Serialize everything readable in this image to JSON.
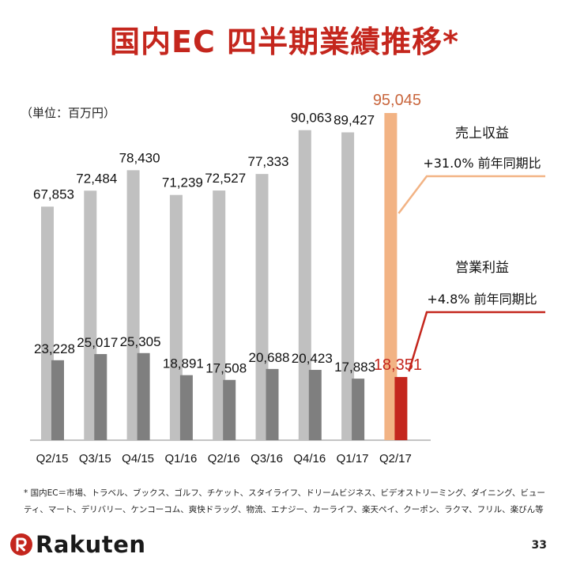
{
  "title": "国内EC 四半期業績推移*",
  "unit_label": "（単位：百万円）",
  "annotations": {
    "revenue": {
      "label": "売上収益",
      "growth": "+31.0% 前年同期比"
    },
    "profit": {
      "label": "営業利益",
      "growth": "+4.8% 前年同期比"
    }
  },
  "footnote": "* 国内EC＝市場、トラベル、ブックス、ゴルフ、チケット、スタイライフ、ドリームビジネス、ビデオストリーミング、ダイニング、ビューティ、マート、デリバリー、ケンコーコム、爽快ドラッグ、物流、エナジー、カーライフ、楽天ペイ、クーポン、ラクマ、フリル、楽びん等",
  "brand": "Rakuten",
  "page_number": "33",
  "colors": {
    "title": "#c4261d",
    "revenue_bar": "#c0c0c0",
    "profit_bar": "#7f7f7f",
    "highlight_revenue_bar": "#f2b384",
    "highlight_profit_bar": "#c4261d",
    "highlight_revenue_label": "#c9663d",
    "highlight_profit_label": "#c4261d"
  },
  "chart_data": {
    "type": "bar",
    "categories": [
      "Q2/15",
      "Q3/15",
      "Q4/15",
      "Q1/16",
      "Q2/16",
      "Q3/16",
      "Q4/16",
      "Q1/17",
      "Q2/17"
    ],
    "series": [
      {
        "name": "売上収益",
        "values": [
          67853,
          72484,
          78430,
          71239,
          72527,
          77333,
          90063,
          89427,
          95045
        ],
        "labels": [
          "67,853",
          "72,484",
          "78,430",
          "71,239",
          "72,527",
          "77,333",
          "90,063",
          "89,427",
          "95,045"
        ]
      },
      {
        "name": "営業利益",
        "values": [
          23228,
          25017,
          25305,
          18891,
          17508,
          20688,
          20423,
          17883,
          18351
        ],
        "labels": [
          "23,228",
          "25,017",
          "25,305",
          "18,891",
          "17,508",
          "20,688",
          "20,423",
          "17,883",
          "18,351"
        ]
      }
    ],
    "highlight_index": 8,
    "ylim": [
      0,
      95045
    ],
    "grid": false,
    "legend": "none"
  }
}
